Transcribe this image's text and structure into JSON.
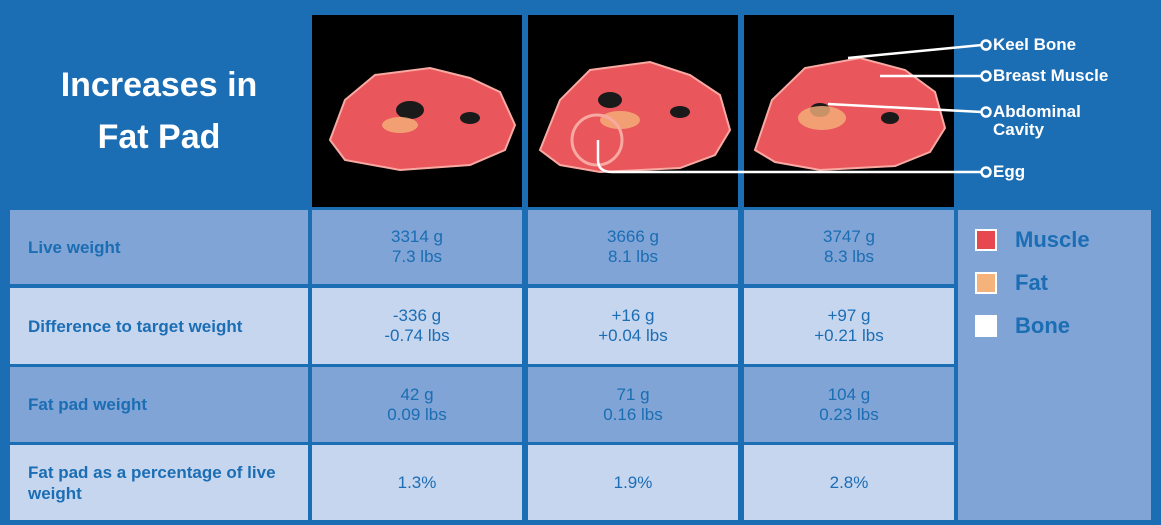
{
  "header": {
    "title": "Increases in Fat Pad"
  },
  "annotations": [
    "Keel Bone",
    "Breast Muscle",
    "Abdominal Cavity",
    "Egg"
  ],
  "legend": [
    {
      "label": "Muscle",
      "color": "#e8474f"
    },
    {
      "label": "Fat",
      "color": "#f5b27a"
    },
    {
      "label": "Bone",
      "color": "#ffffff"
    }
  ],
  "table": {
    "rows": [
      {
        "label": "Live weight",
        "cells": [
          [
            "3314 g",
            "7.3 lbs"
          ],
          [
            "3666 g",
            "8.1 lbs"
          ],
          [
            "3747 g",
            "8.3 lbs"
          ]
        ]
      },
      {
        "label": "Difference to target weight",
        "cells": [
          [
            "-336 g",
            "-0.74 lbs"
          ],
          [
            "+16 g",
            "+0.04 lbs"
          ],
          [
            "+97 g",
            "+0.21 lbs"
          ]
        ]
      },
      {
        "label": "Fat pad weight",
        "cells": [
          [
            "42 g",
            "0.09 lbs"
          ],
          [
            "71 g",
            "0.16 lbs"
          ],
          [
            "104 g",
            "0.23 lbs"
          ]
        ]
      },
      {
        "label": "Fat pad as a percentage of live weight",
        "cells": [
          [
            "1.3%"
          ],
          [
            "1.9%"
          ],
          [
            "2.8%"
          ]
        ]
      }
    ]
  }
}
